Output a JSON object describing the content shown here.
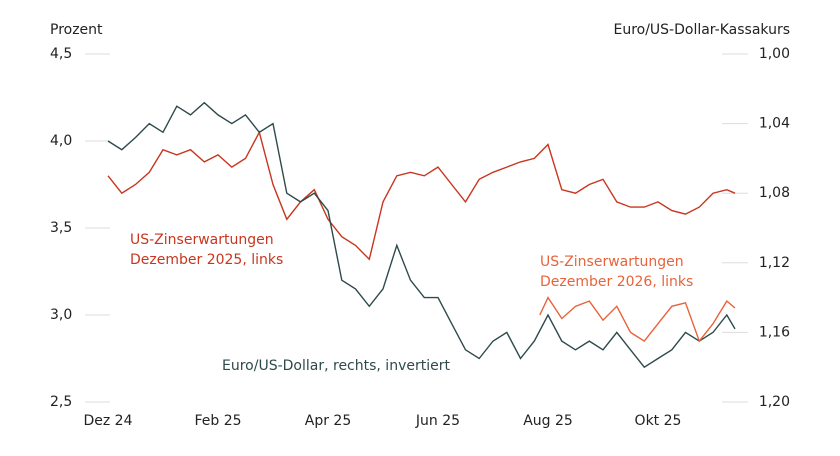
{
  "chart_data": {
    "type": "line",
    "y_label": "Prozent",
    "y2_label": "Euro/US-Dollar-Kassakurs",
    "xlim": [
      0,
      11.4
    ],
    "xticks": [
      {
        "value": 0,
        "label": "Dez 24"
      },
      {
        "value": 2,
        "label": "Feb 25"
      },
      {
        "value": 4,
        "label": "Apr 25"
      },
      {
        "value": 6,
        "label": "Jun 25"
      },
      {
        "value": 8,
        "label": "Aug 25"
      },
      {
        "value": 10,
        "label": "Okt 25"
      }
    ],
    "ylim": [
      2.5,
      4.5
    ],
    "yticks": [
      {
        "value": 2.5,
        "label": "2,5"
      },
      {
        "value": 3.0,
        "label": "3,0"
      },
      {
        "value": 3.5,
        "label": "3,5"
      },
      {
        "value": 4.0,
        "label": "4,0"
      },
      {
        "value": 4.5,
        "label": "4,5"
      }
    ],
    "y2lim": [
      1.0,
      1.2
    ],
    "y2_inverted": true,
    "y2ticks": [
      {
        "value": 1.0,
        "label": "1,00"
      },
      {
        "value": 1.04,
        "label": "1,04"
      },
      {
        "value": 1.08,
        "label": "1,08"
      },
      {
        "value": 1.12,
        "label": "1,12"
      },
      {
        "value": 1.16,
        "label": "1,16"
      },
      {
        "value": 1.2,
        "label": "1,20"
      }
    ],
    "series": [
      {
        "label": [
          "US-Zinserwartungen",
          "Dezember 2025, links"
        ],
        "color": "#c8361f",
        "axis": "y",
        "x": [
          0,
          0.25,
          0.5,
          0.75,
          1,
          1.25,
          1.5,
          1.75,
          2,
          2.25,
          2.5,
          2.75,
          3,
          3.25,
          3.5,
          3.75,
          4,
          4.25,
          4.5,
          4.75,
          5,
          5.25,
          5.5,
          5.75,
          6,
          6.25,
          6.5,
          6.75,
          7,
          7.25,
          7.5,
          7.75,
          8,
          8.25,
          8.5,
          8.75,
          9,
          9.25,
          9.5,
          9.75,
          10,
          10.25,
          10.5,
          10.75,
          11,
          11.25,
          11.4
        ],
        "values": [
          3.8,
          3.7,
          3.75,
          3.82,
          3.95,
          3.92,
          3.95,
          3.88,
          3.92,
          3.85,
          3.9,
          4.05,
          3.75,
          3.55,
          3.65,
          3.72,
          3.55,
          3.45,
          3.4,
          3.32,
          3.65,
          3.8,
          3.82,
          3.8,
          3.85,
          3.75,
          3.65,
          3.78,
          3.82,
          3.85,
          3.88,
          3.9,
          3.98,
          3.72,
          3.7,
          3.75,
          3.78,
          3.65,
          3.62,
          3.62,
          3.65,
          3.6,
          3.58,
          3.62,
          3.7,
          3.72,
          3.7
        ]
      },
      {
        "label": [
          "Euro/US-Dollar, rechts, invertiert"
        ],
        "color": "#2e4a4a",
        "axis": "y2",
        "x": [
          0,
          0.25,
          0.5,
          0.75,
          1,
          1.25,
          1.5,
          1.75,
          2,
          2.25,
          2.5,
          2.75,
          3,
          3.25,
          3.5,
          3.75,
          4,
          4.25,
          4.5,
          4.75,
          5,
          5.25,
          5.5,
          5.75,
          6,
          6.25,
          6.5,
          6.75,
          7,
          7.25,
          7.5,
          7.75,
          8,
          8.25,
          8.5,
          8.75,
          9,
          9.25,
          9.5,
          9.75,
          10,
          10.25,
          10.5,
          10.75,
          11,
          11.25,
          11.4
        ],
        "values": [
          1.05,
          1.055,
          1.048,
          1.04,
          1.045,
          1.03,
          1.035,
          1.028,
          1.035,
          1.04,
          1.035,
          1.045,
          1.04,
          1.08,
          1.085,
          1.08,
          1.09,
          1.13,
          1.135,
          1.145,
          1.135,
          1.11,
          1.13,
          1.14,
          1.14,
          1.155,
          1.17,
          1.175,
          1.165,
          1.16,
          1.175,
          1.165,
          1.15,
          1.165,
          1.17,
          1.165,
          1.17,
          1.16,
          1.17,
          1.18,
          1.175,
          1.17,
          1.16,
          1.165,
          1.16,
          1.15,
          1.158
        ]
      },
      {
        "label": [
          "US-Zinserwartungen",
          "Dezember 2026, links"
        ],
        "color": "#e8633a",
        "axis": "y",
        "x": [
          7.85,
          8,
          8.25,
          8.5,
          8.75,
          9,
          9.25,
          9.5,
          9.75,
          10,
          10.25,
          10.5,
          10.75,
          11,
          11.25,
          11.4
        ],
        "values": [
          3.0,
          3.1,
          2.98,
          3.05,
          3.08,
          2.97,
          3.05,
          2.9,
          2.85,
          2.95,
          3.05,
          3.07,
          2.85,
          2.95,
          3.08,
          3.04
        ]
      }
    ]
  }
}
